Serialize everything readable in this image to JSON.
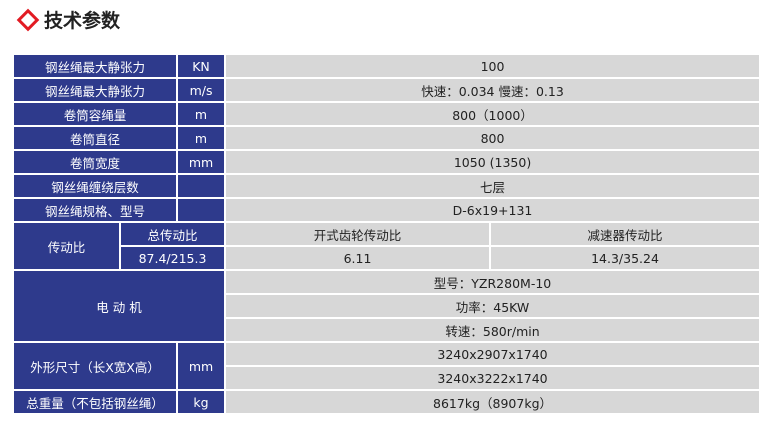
{
  "title": "技术参数",
  "colors": {
    "header_bg": "#2e3a8c",
    "cell_bg": "#d7d7d7",
    "accent": "#e21b23"
  },
  "rows": [
    {
      "label": "钢丝绳最大静张力",
      "unit": "KN",
      "value": "100"
    },
    {
      "label": "钢丝绳最大静张力",
      "unit": "m/s",
      "value": "快速：0.034  慢速：0.13"
    },
    {
      "label": "卷筒容绳量",
      "unit": "m",
      "value": "800（1000）"
    },
    {
      "label": "卷筒直径",
      "unit": "m",
      "value": "800"
    },
    {
      "label": "卷筒宽度",
      "unit": "mm",
      "value": "1050 (1350)"
    },
    {
      "label": "钢丝绳缠绕层数",
      "unit": "",
      "value": "七层"
    },
    {
      "label": "钢丝绳规格、型号",
      "unit": "",
      "value": "D-6x19+131"
    }
  ],
  "transmission": {
    "label": "传动比",
    "total_label": "总传动比",
    "total_value": "87.4/215.3",
    "open_label": "开式齿轮传动比",
    "open_value": "6.11",
    "reducer_label": "减速器传动比",
    "reducer_value": "14.3/35.24"
  },
  "motor": {
    "label": "电 动 机",
    "model": "型号：YZR280M-10",
    "power": "功率：45KW",
    "speed": "转速：580r/min"
  },
  "dimensions": {
    "label": "外形尺寸（长X宽X高）",
    "unit": "mm",
    "values": [
      "3240x2907x1740",
      "3240x3222x1740"
    ]
  },
  "weight": {
    "label": "总重量（不包括钢丝绳）",
    "unit": "kg",
    "value": "8617kg（8907kg）"
  }
}
